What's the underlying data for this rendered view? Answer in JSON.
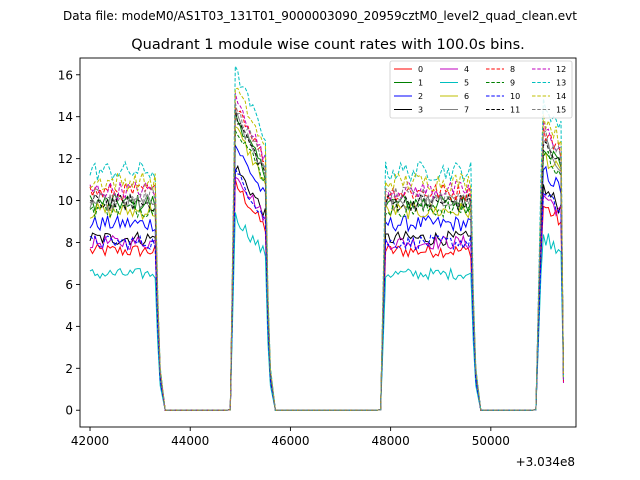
{
  "chart_data": {
    "type": "line",
    "suptitle": "Data file: modeM0/AS1T03_131T01_9000003090_20959cztM0_level2_quad_clean.evt",
    "title": "Quadrant 1 module wise count rates with 100.0s bins.",
    "xlabel": "",
    "ylabel": "",
    "x_offset_label": "+3.034e8",
    "xlim": [
      41800,
      51700
    ],
    "ylim": [
      -0.8,
      16.8
    ],
    "xticks": [
      42000,
      44000,
      46000,
      48000,
      50000
    ],
    "yticks": [
      0,
      2,
      4,
      6,
      8,
      10,
      12,
      14,
      16
    ],
    "legend_position": "top-right",
    "segments": [
      {
        "start": 42000,
        "end": 43300
      },
      {
        "start": 44900,
        "end": 45500
      },
      {
        "start": 47900,
        "end": 49600
      },
      {
        "start": 51000,
        "end": 51400
      }
    ],
    "series": [
      {
        "name": "0",
        "color": "#ff0000",
        "dash": "solid",
        "level": 7.6
      },
      {
        "name": "1",
        "color": "#008000",
        "dash": "solid",
        "level": 9.9
      },
      {
        "name": "2",
        "color": "#0000ff",
        "dash": "solid",
        "level": 8.9
      },
      {
        "name": "3",
        "color": "#000000",
        "dash": "solid",
        "level": 8.2
      },
      {
        "name": "4",
        "color": "#bf00bf",
        "dash": "solid",
        "level": 8.0
      },
      {
        "name": "5",
        "color": "#00bfbf",
        "dash": "solid",
        "level": 6.5
      },
      {
        "name": "6",
        "color": "#bfbf00",
        "dash": "solid",
        "level": 9.5
      },
      {
        "name": "7",
        "color": "#808080",
        "dash": "solid",
        "level": 9.9
      },
      {
        "name": "8",
        "color": "#ff0000",
        "dash": "dashed",
        "level": 10.4
      },
      {
        "name": "9",
        "color": "#008000",
        "dash": "dashed",
        "level": 9.6
      },
      {
        "name": "10",
        "color": "#0000ff",
        "dash": "dashed",
        "level": 8.0
      },
      {
        "name": "11",
        "color": "#000000",
        "dash": "dashed",
        "level": 9.9
      },
      {
        "name": "12",
        "color": "#bf00bf",
        "dash": "dashed",
        "level": 10.5
      },
      {
        "name": "13",
        "color": "#00bfbf",
        "dash": "dashed",
        "level": 11.4
      },
      {
        "name": "14",
        "color": "#bfbf00",
        "dash": "dashed",
        "level": 10.9
      },
      {
        "name": "15",
        "color": "#808080",
        "dash": "dashed",
        "level": 10.2
      }
    ]
  }
}
